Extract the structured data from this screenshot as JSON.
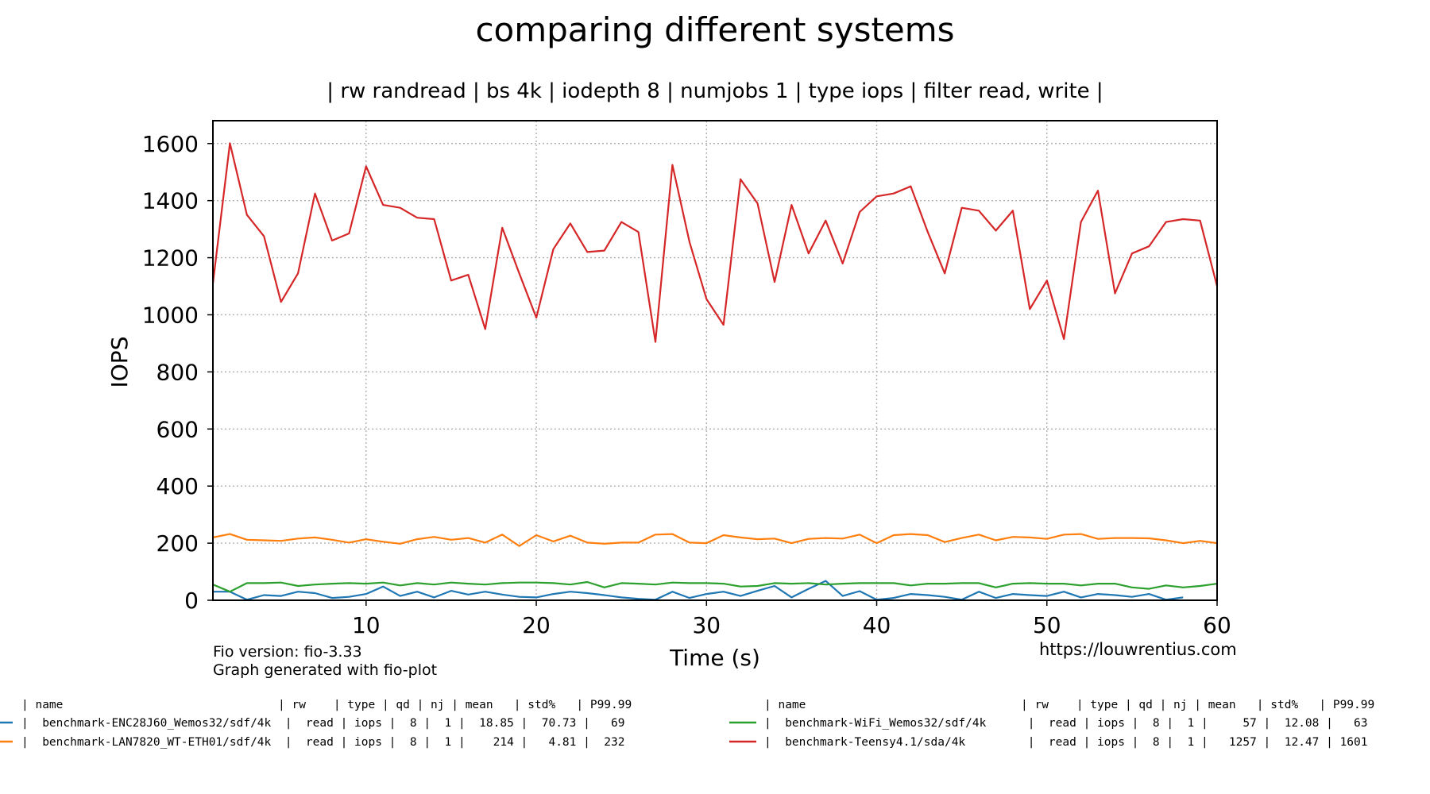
{
  "chart_data": {
    "type": "line",
    "title": "comparing different systems",
    "subtitle": "| rw randread | bs 4k | iodepth 8 | numjobs 1 | type iops | filter read, write |",
    "xlabel": "Time (s)",
    "ylabel": "IOPS",
    "xlim": [
      1,
      60
    ],
    "ylim": [
      0,
      1680
    ],
    "xticks": [
      10,
      20,
      30,
      40,
      50,
      60
    ],
    "yticks": [
      0,
      200,
      400,
      600,
      800,
      1000,
      1200,
      1400,
      1600
    ],
    "grid": true,
    "footer_left": [
      "Fio version: fio-3.33",
      "Graph generated with fio-plot"
    ],
    "footer_right": "https://louwrentius.com",
    "legend_headers": [
      "| name                               | rw    | type | qd | nj | mean   | std%   | P99.99",
      "| name                               | rw    | type | qd | nj | mean   | std%   | P99.99"
    ],
    "series": [
      {
        "color": "#1f77b4",
        "legend": "|  benchmark-ENC28J60_Wemos32/sdf/4k  |  read | iops |  8 |  1 |  18.85 |  70.73 |   69",
        "x": [
          1,
          2,
          3,
          4,
          5,
          6,
          7,
          8,
          9,
          10,
          11,
          12,
          13,
          14,
          15,
          16,
          17,
          18,
          19,
          20,
          21,
          22,
          23,
          24,
          25,
          26,
          27,
          28,
          29,
          30,
          31,
          32,
          33,
          34,
          35,
          36,
          37,
          38,
          39,
          40,
          41,
          42,
          43,
          44,
          45,
          46,
          47,
          48,
          49,
          50,
          51,
          52,
          53,
          54,
          55,
          56,
          57,
          58
        ],
        "values": [
          30,
          30,
          2,
          18,
          15,
          30,
          25,
          8,
          12,
          22,
          48,
          15,
          30,
          10,
          33,
          20,
          30,
          20,
          12,
          10,
          22,
          30,
          25,
          18,
          10,
          5,
          2,
          30,
          8,
          22,
          30,
          15,
          33,
          50,
          10,
          40,
          68,
          15,
          32,
          2,
          8,
          22,
          18,
          12,
          2,
          30,
          8,
          22,
          18,
          15,
          30,
          10,
          22,
          18,
          12,
          22,
          2,
          10
        ]
      },
      {
        "color": "#ff7f0e",
        "legend": "|  benchmark-LAN7820_WT-ETH01/sdf/4k  |  read | iops |  8 |  1 |    214 |   4.81 |  232",
        "x": [
          1,
          2,
          3,
          4,
          5,
          6,
          7,
          8,
          9,
          10,
          11,
          12,
          13,
          14,
          15,
          16,
          17,
          18,
          19,
          20,
          21,
          22,
          23,
          24,
          25,
          26,
          27,
          28,
          29,
          30,
          31,
          32,
          33,
          34,
          35,
          36,
          37,
          38,
          39,
          40,
          41,
          42,
          43,
          44,
          45,
          46,
          47,
          48,
          49,
          50,
          51,
          52,
          53,
          54,
          55,
          56,
          57,
          58,
          59,
          60
        ],
        "values": [
          220,
          232,
          212,
          210,
          208,
          216,
          220,
          212,
          202,
          214,
          205,
          198,
          214,
          222,
          212,
          218,
          202,
          230,
          190,
          228,
          206,
          226,
          202,
          198,
          202,
          202,
          230,
          232,
          202,
          200,
          228,
          220,
          214,
          216,
          200,
          215,
          218,
          216,
          230,
          200,
          228,
          232,
          228,
          204,
          218,
          230,
          210,
          222,
          220,
          215,
          230,
          232,
          215,
          218,
          218,
          217,
          210,
          200,
          208,
          200
        ]
      },
      {
        "color": "#2ca02c",
        "legend": "|  benchmark-WiFi_Wemos32/sdf/4k      |  read | iops |  8 |  1 |     57 |  12.08 |   63",
        "x": [
          1,
          2,
          3,
          4,
          5,
          6,
          7,
          8,
          9,
          10,
          11,
          12,
          13,
          14,
          15,
          16,
          17,
          18,
          19,
          20,
          21,
          22,
          23,
          24,
          25,
          26,
          27,
          28,
          29,
          30,
          31,
          32,
          33,
          34,
          35,
          36,
          37,
          38,
          39,
          40,
          41,
          42,
          43,
          44,
          45,
          46,
          47,
          48,
          49,
          50,
          51,
          52,
          53,
          54,
          55,
          56,
          57,
          58,
          59,
          60
        ],
        "values": [
          55,
          30,
          60,
          60,
          62,
          50,
          55,
          58,
          60,
          58,
          62,
          52,
          60,
          55,
          62,
          58,
          55,
          60,
          62,
          62,
          60,
          55,
          64,
          45,
          60,
          58,
          55,
          62,
          60,
          60,
          58,
          48,
          50,
          60,
          58,
          60,
          55,
          58,
          60,
          60,
          60,
          52,
          58,
          58,
          60,
          60,
          45,
          58,
          60,
          58,
          58,
          52,
          58,
          58,
          45,
          40,
          52,
          45,
          50,
          58
        ]
      },
      {
        "color": "#d62728",
        "legend": "|  benchmark-Teensy4.1/sda/4k         |  read | iops |  8 |  1 |   1257 |  12.47 | 1601",
        "x": [
          1,
          2,
          3,
          4,
          5,
          6,
          7,
          8,
          9,
          10,
          11,
          12,
          13,
          14,
          15,
          16,
          17,
          18,
          19,
          20,
          21,
          22,
          23,
          24,
          25,
          26,
          27,
          28,
          29,
          30,
          31,
          32,
          33,
          34,
          35,
          36,
          37,
          38,
          39,
          40,
          41,
          42,
          43,
          44,
          45,
          46,
          47,
          48,
          49,
          50,
          51,
          52,
          53,
          54,
          55,
          56,
          57,
          58,
          59,
          60
        ],
        "values": [
          1110,
          1601,
          1350,
          1275,
          1045,
          1145,
          1425,
          1260,
          1285,
          1520,
          1385,
          1375,
          1340,
          1335,
          1120,
          1140,
          950,
          1305,
          1145,
          990,
          1230,
          1320,
          1220,
          1225,
          1325,
          1290,
          905,
          1525,
          1255,
          1055,
          965,
          1475,
          1390,
          1115,
          1385,
          1215,
          1330,
          1180,
          1360,
          1415,
          1425,
          1450,
          1290,
          1145,
          1375,
          1365,
          1295,
          1365,
          1020,
          1120,
          915,
          1325,
          1435,
          1075,
          1215,
          1240,
          1325,
          1335,
          1330,
          1100
        ]
      }
    ]
  }
}
